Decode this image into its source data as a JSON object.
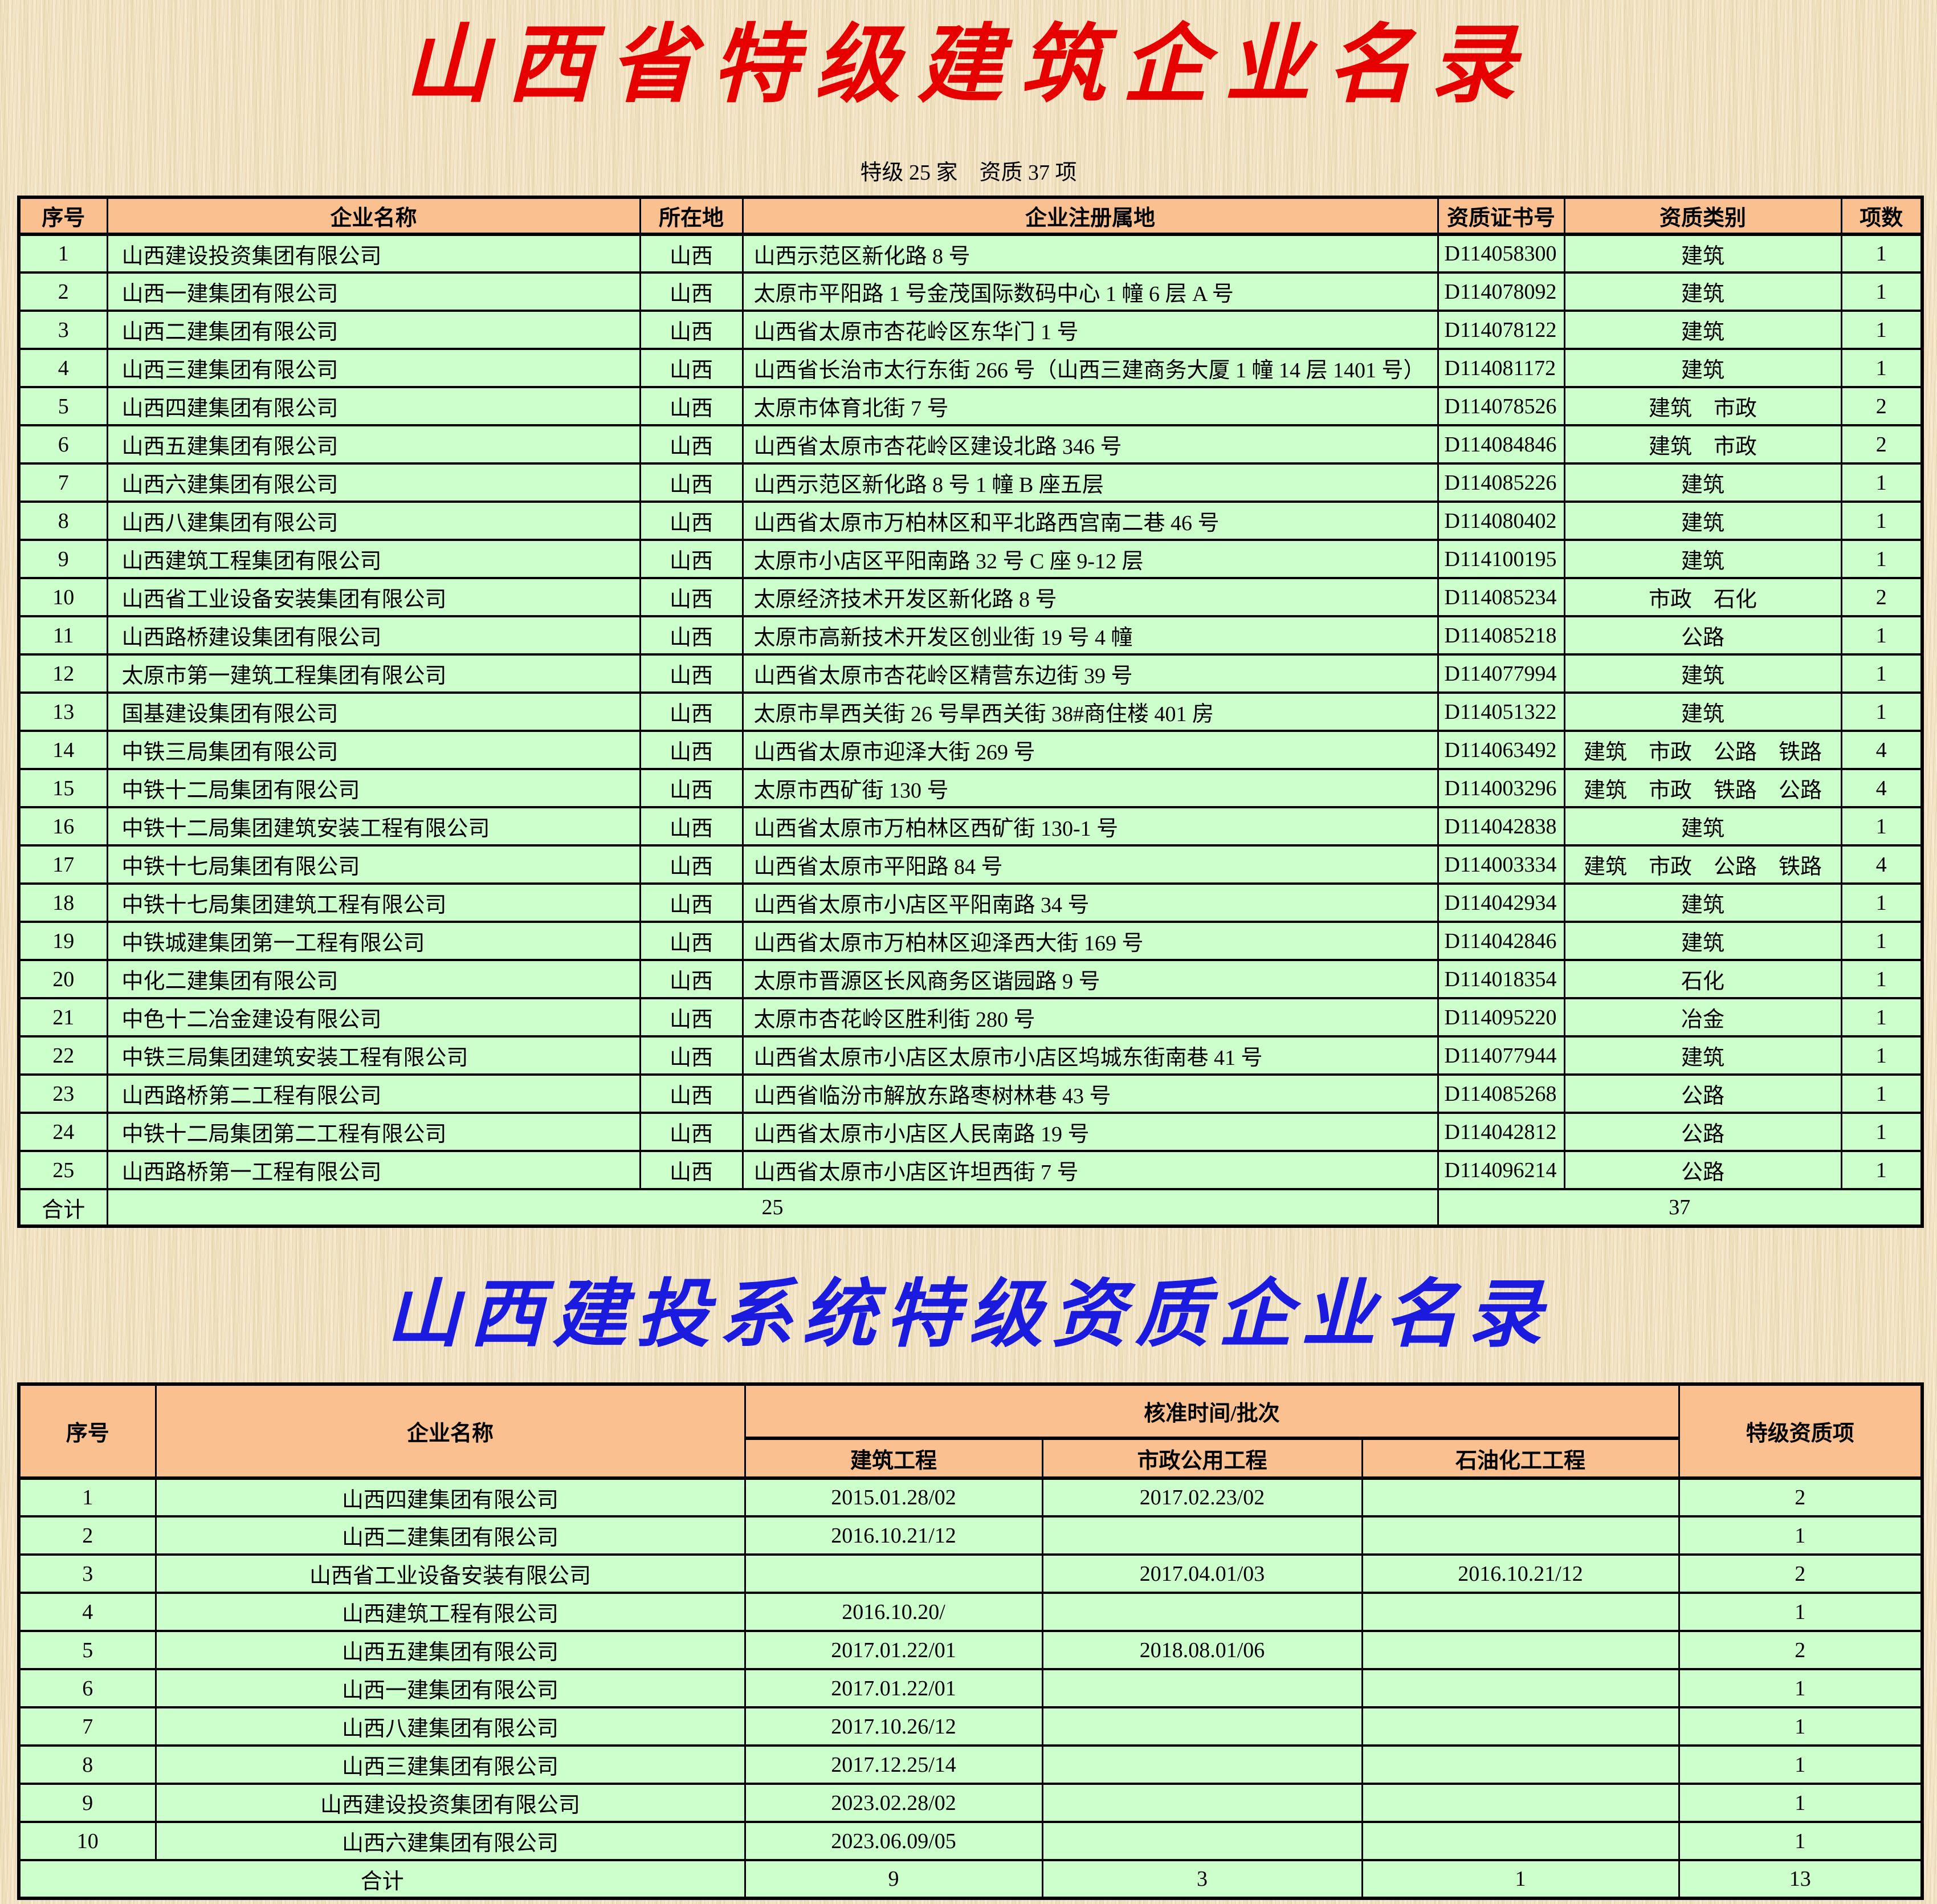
{
  "theme": {
    "page_bg": "#F2E4C4",
    "header_bg": "#FAC08F",
    "row_bg": "#CCFFCC",
    "title1_color": "#E60000",
    "title2_color": "#1B1BE0"
  },
  "title1": "山西省特级建筑企业名录",
  "subtitle": "特级 25 家　资质 37 项",
  "title2": "山西建投系统特级资质企业名录",
  "table1": {
    "headers": [
      "序号",
      "企业名称",
      "所在地",
      "企业注册属地",
      "资质证书号",
      "资质类别",
      "项数"
    ],
    "rows": [
      {
        "seq": "1",
        "name": "山西建设投资集团有限公司",
        "region": "山西",
        "address": "山西示范区新化路 8 号",
        "cert": "D114058300",
        "category": "建筑",
        "count": "1"
      },
      {
        "seq": "2",
        "name": "山西一建集团有限公司",
        "region": "山西",
        "address": "太原市平阳路 1 号金茂国际数码中心 1 幢 6 层 A 号",
        "cert": "D114078092",
        "category": "建筑",
        "count": "1"
      },
      {
        "seq": "3",
        "name": "山西二建集团有限公司",
        "region": "山西",
        "address": "山西省太原市杏花岭区东华门 1 号",
        "cert": "D114078122",
        "category": "建筑",
        "count": "1"
      },
      {
        "seq": "4",
        "name": "山西三建集团有限公司",
        "region": "山西",
        "address": "山西省长治市太行东街 266 号（山西三建商务大厦 1 幢 14 层 1401 号）",
        "cert": "D114081172",
        "category": "建筑",
        "count": "1"
      },
      {
        "seq": "5",
        "name": "山西四建集团有限公司",
        "region": "山西",
        "address": "太原市体育北街 7 号",
        "cert": "D114078526",
        "category": "建筑　市政",
        "count": "2"
      },
      {
        "seq": "6",
        "name": "山西五建集团有限公司",
        "region": "山西",
        "address": "山西省太原市杏花岭区建设北路 346 号",
        "cert": "D114084846",
        "category": "建筑　市政",
        "count": "2"
      },
      {
        "seq": "7",
        "name": "山西六建集团有限公司",
        "region": "山西",
        "address": "山西示范区新化路 8 号 1 幢 B 座五层",
        "cert": "D114085226",
        "category": "建筑",
        "count": "1"
      },
      {
        "seq": "8",
        "name": "山西八建集团有限公司",
        "region": "山西",
        "address": "山西省太原市万柏林区和平北路西宫南二巷 46 号",
        "cert": "D114080402",
        "category": "建筑",
        "count": "1"
      },
      {
        "seq": "9",
        "name": "山西建筑工程集团有限公司",
        "region": "山西",
        "address": "太原市小店区平阳南路 32 号 C 座 9-12 层",
        "cert": "D114100195",
        "category": "建筑",
        "count": "1"
      },
      {
        "seq": "10",
        "name": "山西省工业设备安装集团有限公司",
        "region": "山西",
        "address": "太原经济技术开发区新化路 8 号",
        "cert": "D114085234",
        "category": "市政　石化",
        "count": "2"
      },
      {
        "seq": "11",
        "name": "山西路桥建设集团有限公司",
        "region": "山西",
        "address": "太原市高新技术开发区创业街 19 号 4 幢",
        "cert": "D114085218",
        "category": "公路",
        "count": "1"
      },
      {
        "seq": "12",
        "name": "太原市第一建筑工程集团有限公司",
        "region": "山西",
        "address": "山西省太原市杏花岭区精营东边街 39 号",
        "cert": "D114077994",
        "category": "建筑",
        "count": "1"
      },
      {
        "seq": "13",
        "name": "国基建设集团有限公司",
        "region": "山西",
        "address": "太原市旱西关街 26 号旱西关街 38#商住楼 401 房",
        "cert": "D114051322",
        "category": "建筑",
        "count": "1"
      },
      {
        "seq": "14",
        "name": "中铁三局集团有限公司",
        "region": "山西",
        "address": "山西省太原市迎泽大街 269 号",
        "cert": "D114063492",
        "category": "建筑　市政　公路　铁路",
        "count": "4"
      },
      {
        "seq": "15",
        "name": "中铁十二局集团有限公司",
        "region": "山西",
        "address": "太原市西矿街 130 号",
        "cert": "D114003296",
        "category": "建筑　市政　铁路　公路",
        "count": "4"
      },
      {
        "seq": "16",
        "name": "中铁十二局集团建筑安装工程有限公司",
        "region": "山西",
        "address": "山西省太原市万柏林区西矿街 130-1 号",
        "cert": "D114042838",
        "category": "建筑",
        "count": "1"
      },
      {
        "seq": "17",
        "name": "中铁十七局集团有限公司",
        "region": "山西",
        "address": "山西省太原市平阳路 84 号",
        "cert": "D114003334",
        "category": "建筑　市政　公路　铁路",
        "count": "4"
      },
      {
        "seq": "18",
        "name": "中铁十七局集团建筑工程有限公司",
        "region": "山西",
        "address": "山西省太原市小店区平阳南路 34 号",
        "cert": "D114042934",
        "category": "建筑",
        "count": "1"
      },
      {
        "seq": "19",
        "name": "中铁城建集团第一工程有限公司",
        "region": "山西",
        "address": "山西省太原市万柏林区迎泽西大街 169 号",
        "cert": "D114042846",
        "category": "建筑",
        "count": "1"
      },
      {
        "seq": "20",
        "name": "中化二建集团有限公司",
        "region": "山西",
        "address": "太原市晋源区长风商务区谐园路 9 号",
        "cert": "D114018354",
        "category": "石化",
        "count": "1"
      },
      {
        "seq": "21",
        "name": "中色十二冶金建设有限公司",
        "region": "山西",
        "address": "太原市杏花岭区胜利街 280 号",
        "cert": "D114095220",
        "category": "冶金",
        "count": "1"
      },
      {
        "seq": "22",
        "name": "中铁三局集团建筑安装工程有限公司",
        "region": "山西",
        "address": "山西省太原市小店区太原市小店区坞城东街南巷 41 号",
        "cert": "D114077944",
        "category": "建筑",
        "count": "1"
      },
      {
        "seq": "23",
        "name": "山西路桥第二工程有限公司",
        "region": "山西",
        "address": "山西省临汾市解放东路枣树林巷 43 号",
        "cert": "D114085268",
        "category": "公路",
        "count": "1"
      },
      {
        "seq": "24",
        "name": "中铁十二局集团第二工程有限公司",
        "region": "山西",
        "address": "山西省太原市小店区人民南路 19 号",
        "cert": "D114042812",
        "category": "公路",
        "count": "1"
      },
      {
        "seq": "25",
        "name": "山西路桥第一工程有限公司",
        "region": "山西",
        "address": "山西省太原市小店区许坦西街 7 号",
        "cert": "D114096214",
        "category": "公路",
        "count": "1"
      }
    ],
    "total_label": "合计",
    "total_companies": "25",
    "total_items": "37"
  },
  "table2": {
    "headers": {
      "index": "序号",
      "company": "企业名称",
      "approval": "核准时间/批次",
      "construction": "建筑工程",
      "municipal": "市政公用工程",
      "petrochemical": "石油化工工程",
      "special_items": "特级资质项"
    },
    "rows": [
      {
        "seq": "1",
        "name": "山西四建集团有限公司",
        "construction": "2015.01.28/02",
        "municipal": "2017.02.23/02",
        "petrochemical": "",
        "special": "2"
      },
      {
        "seq": "2",
        "name": "山西二建集团有限公司",
        "construction": "2016.10.21/12",
        "municipal": "",
        "petrochemical": "",
        "special": "1"
      },
      {
        "seq": "3",
        "name": "山西省工业设备安装有限公司",
        "construction": "",
        "municipal": "2017.04.01/03",
        "petrochemical": "2016.10.21/12",
        "special": "2"
      },
      {
        "seq": "4",
        "name": "山西建筑工程有限公司",
        "construction": "2016.10.20/",
        "municipal": "",
        "petrochemical": "",
        "special": "1"
      },
      {
        "seq": "5",
        "name": "山西五建集团有限公司",
        "construction": "2017.01.22/01",
        "municipal": "2018.08.01/06",
        "petrochemical": "",
        "special": "2"
      },
      {
        "seq": "6",
        "name": "山西一建集团有限公司",
        "construction": "2017.01.22/01",
        "municipal": "",
        "petrochemical": "",
        "special": "1"
      },
      {
        "seq": "7",
        "name": "山西八建集团有限公司",
        "construction": "2017.10.26/12",
        "municipal": "",
        "petrochemical": "",
        "special": "1"
      },
      {
        "seq": "8",
        "name": "山西三建集团有限公司",
        "construction": "2017.12.25/14",
        "municipal": "",
        "petrochemical": "",
        "special": "1"
      },
      {
        "seq": "9",
        "name": "山西建设投资集团有限公司",
        "construction": "2023.02.28/02",
        "municipal": "",
        "petrochemical": "",
        "special": "1"
      },
      {
        "seq": "10",
        "name": "山西六建集团有限公司",
        "construction": "2023.06.09/05",
        "municipal": "",
        "petrochemical": "",
        "special": "1"
      }
    ],
    "total_label": "合计",
    "totals": {
      "construction": "9",
      "municipal": "3",
      "petrochemical": "1",
      "special": "13"
    }
  }
}
